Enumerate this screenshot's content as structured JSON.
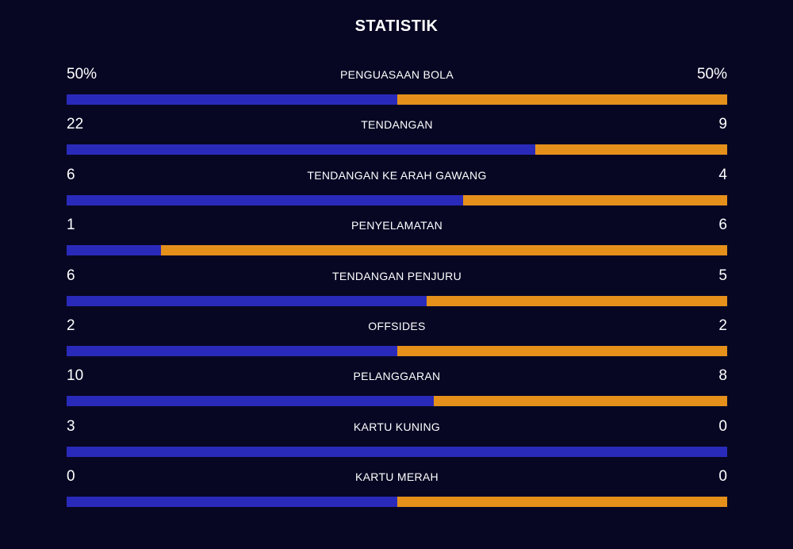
{
  "title": "STATISTIK",
  "colors": {
    "background": "#070724",
    "home": "#2a2aba",
    "away": "#e5901a"
  },
  "stats": [
    {
      "label": "PENGUASAAN BOLA",
      "left": "50%",
      "right": "50%",
      "left_value": 50,
      "right_value": 50
    },
    {
      "label": "TENDANGAN",
      "left": "22",
      "right": "9",
      "left_value": 22,
      "right_value": 9
    },
    {
      "label": "TENDANGAN KE ARAH GAWANG",
      "left": "6",
      "right": "4",
      "left_value": 6,
      "right_value": 4
    },
    {
      "label": "PENYELAMATAN",
      "left": "1",
      "right": "6",
      "left_value": 1,
      "right_value": 6
    },
    {
      "label": "TENDANGAN PENJURU",
      "left": "6",
      "right": "5",
      "left_value": 6,
      "right_value": 5
    },
    {
      "label": "OFFSIDES",
      "left": "2",
      "right": "2",
      "left_value": 2,
      "right_value": 2
    },
    {
      "label": "PELANGGARAN",
      "left": "10",
      "right": "8",
      "left_value": 10,
      "right_value": 8
    },
    {
      "label": "KARTU KUNING",
      "left": "3",
      "right": "0",
      "left_value": 3,
      "right_value": 0
    },
    {
      "label": "KARTU MERAH",
      "left": "0",
      "right": "0",
      "left_value": 0,
      "right_value": 0
    }
  ]
}
